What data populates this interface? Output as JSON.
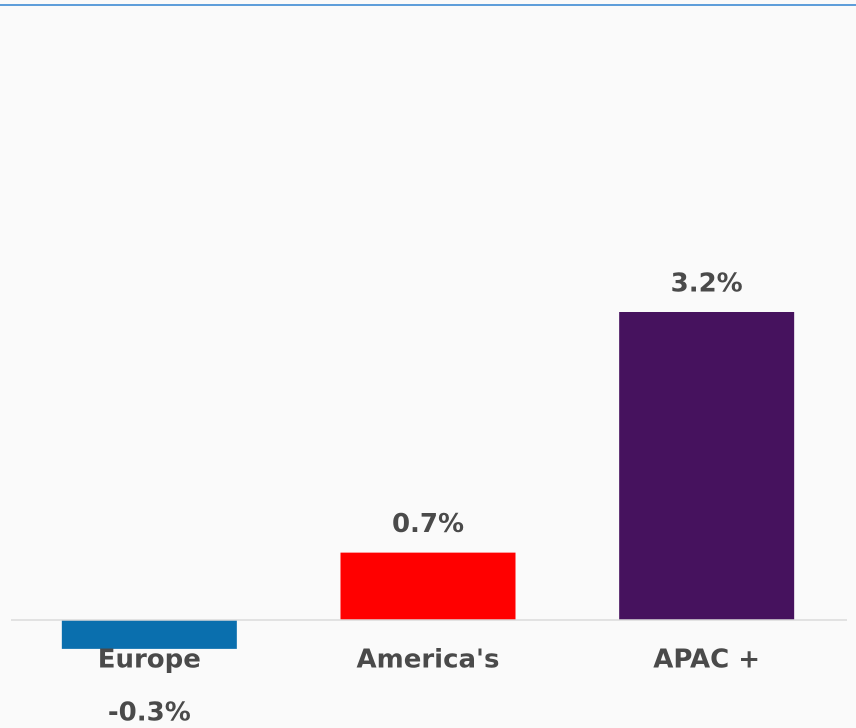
{
  "chart_data": {
    "type": "bar",
    "categories": [
      "Europe",
      "America's",
      "APAC +"
    ],
    "values": [
      -0.3,
      0.7,
      3.2
    ],
    "value_labels": [
      "-0.3%",
      "0.7%",
      "3.2%"
    ],
    "colors": [
      "#0a6fae",
      "#ff0000",
      "#46125e"
    ]
  }
}
